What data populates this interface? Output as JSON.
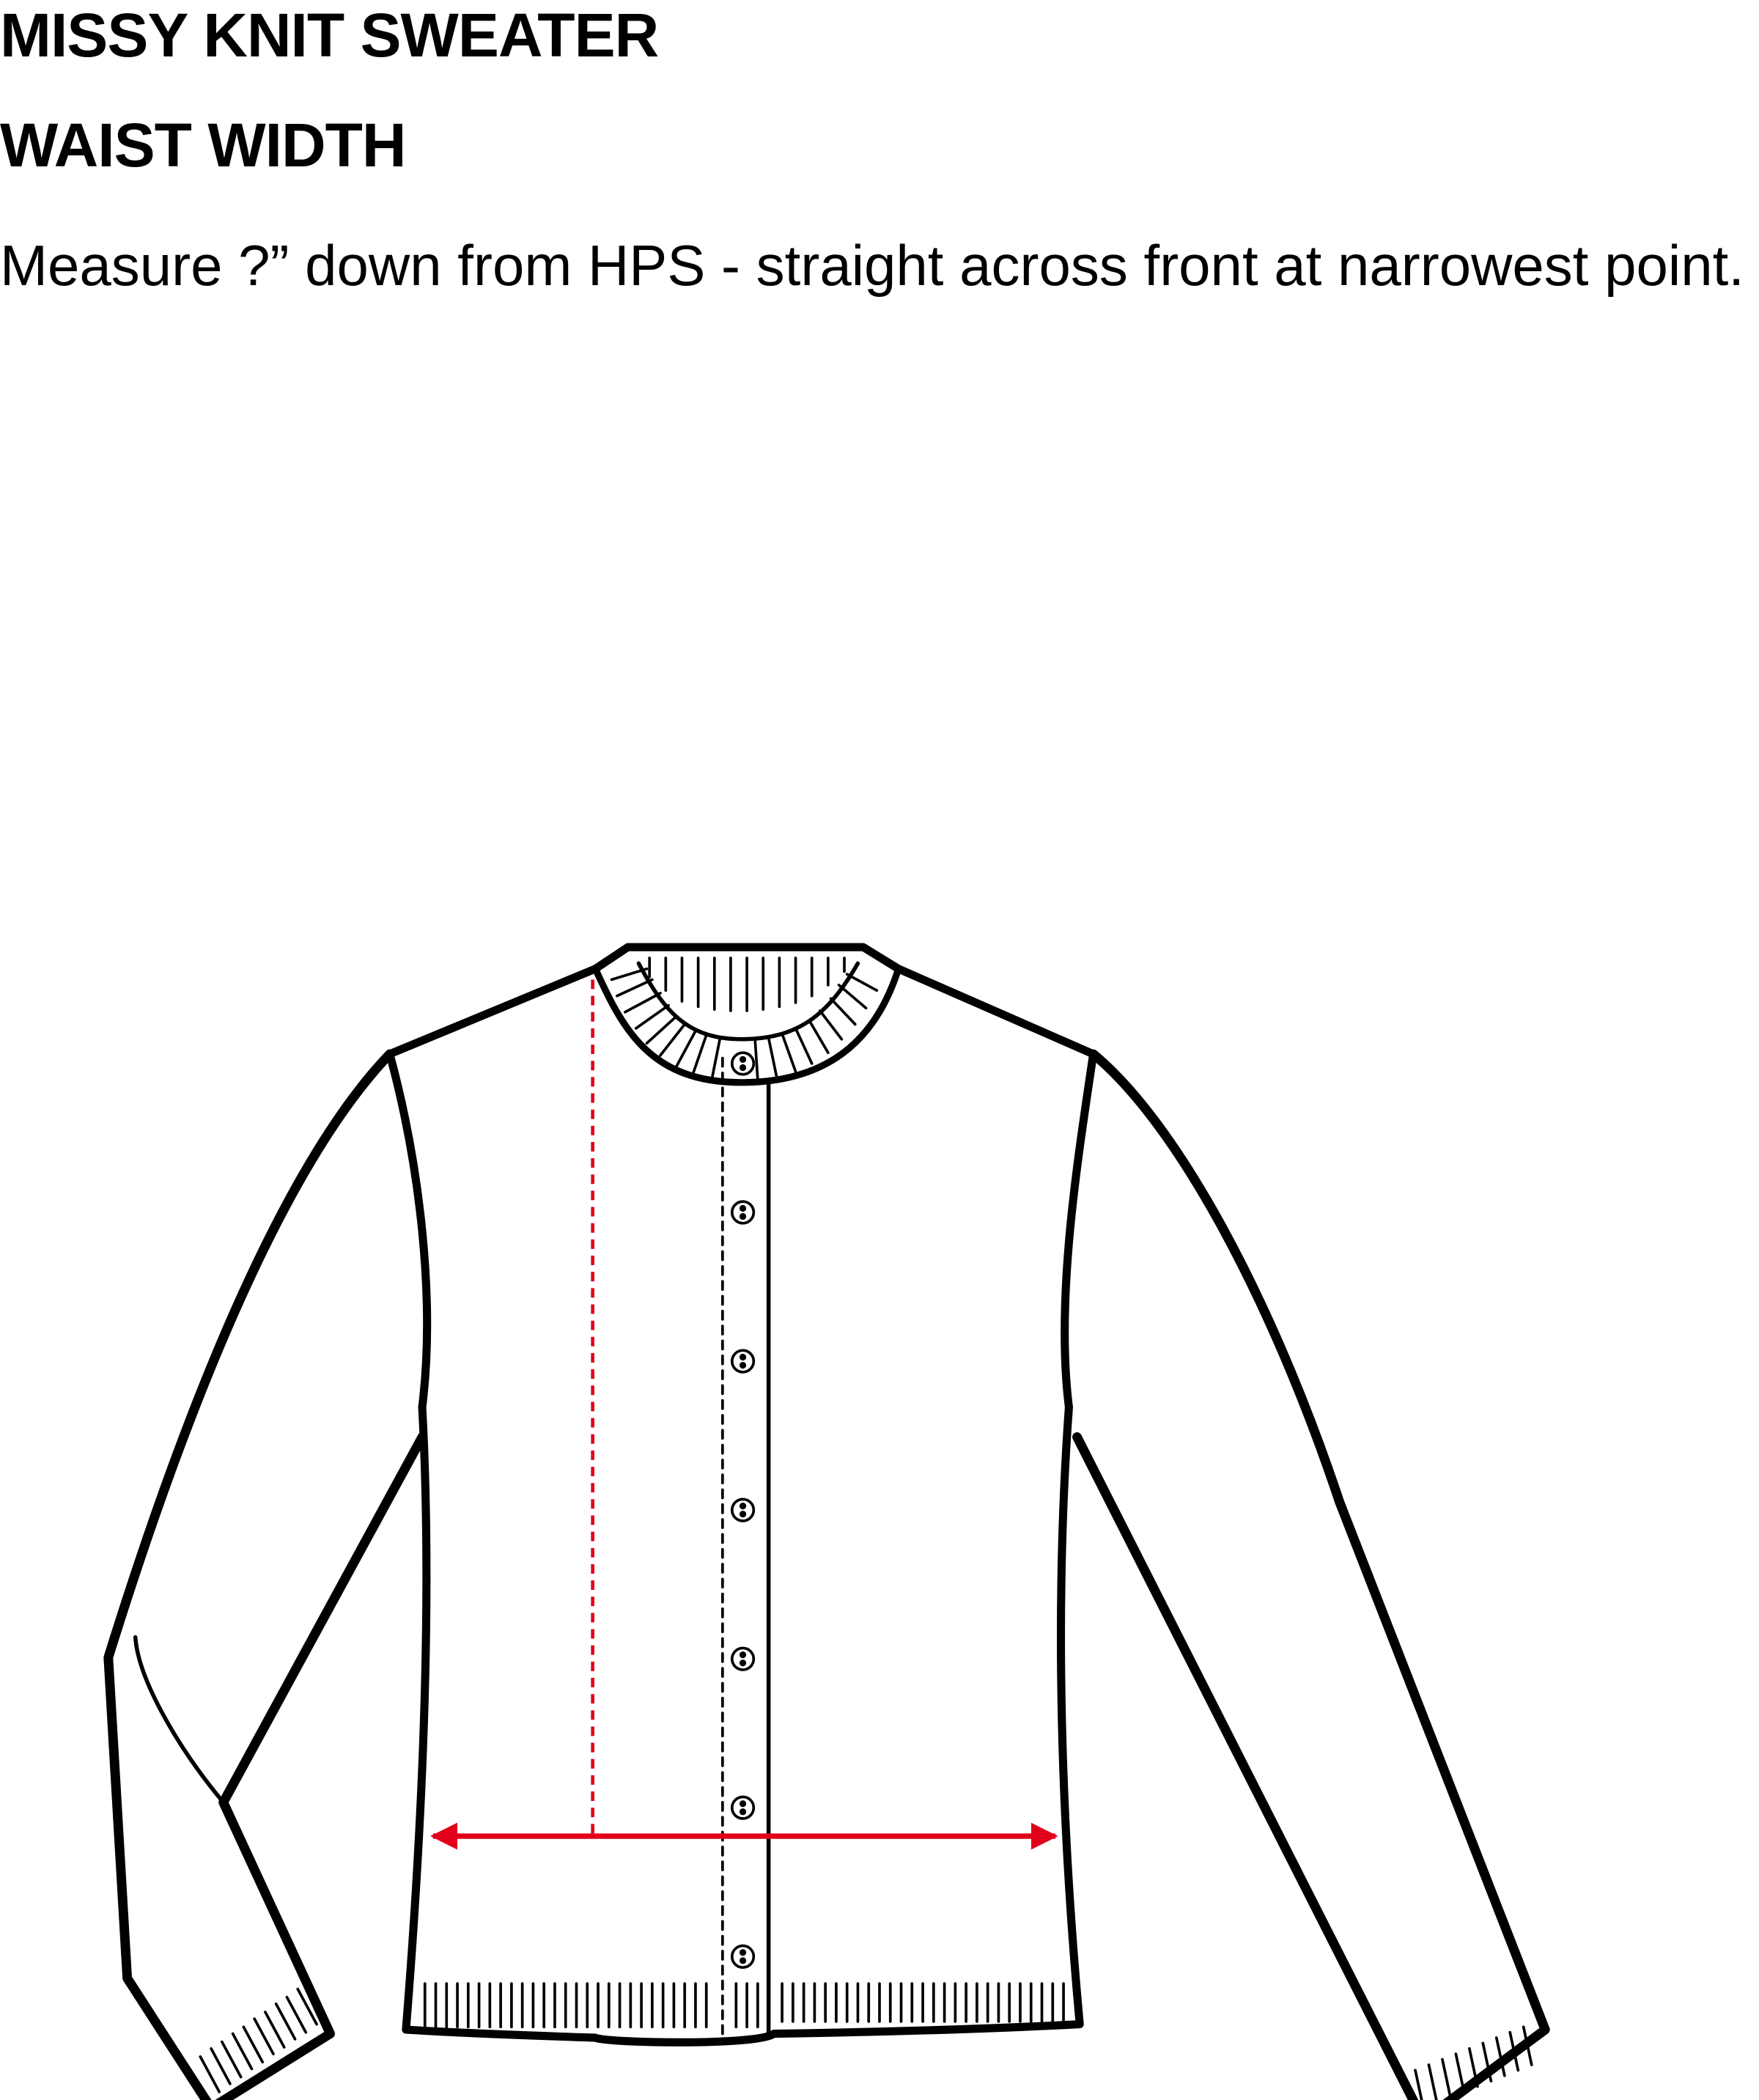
{
  "header": {
    "title": "MISSY KNIT SWEATER",
    "subtitle": "WAIST WIDTH",
    "instruction": "Measure ?” down from HPS - straight across front at narrowest point."
  },
  "diagram": {
    "garment": "cardigan-sweater",
    "button_count": 7,
    "colors": {
      "outline": "#000000",
      "measure_arrow": "#e2001a",
      "guide_line": "#e2001a"
    }
  }
}
